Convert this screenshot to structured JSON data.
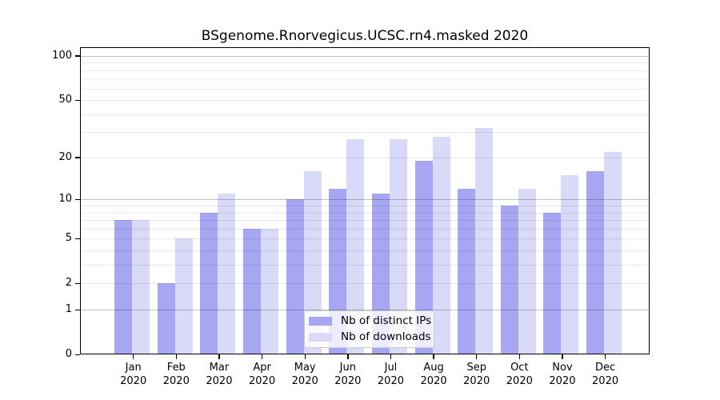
{
  "title": "BSgenome.Rnorvegicus.UCSC.rn4.masked 2020",
  "chart_data": {
    "type": "bar",
    "title": "BSgenome.Rnorvegicus.UCSC.rn4.masked 2020",
    "categories": [
      "Jan",
      "Feb",
      "Mar",
      "Apr",
      "May",
      "Jun",
      "Jul",
      "Aug",
      "Sep",
      "Oct",
      "Nov",
      "Dec"
    ],
    "category_year": "2020",
    "series": [
      {
        "name": "Nb of distinct IPs",
        "color": "#a6a6f2",
        "values": [
          7,
          2,
          8,
          6,
          10,
          12,
          11,
          19,
          12,
          9,
          8,
          16
        ]
      },
      {
        "name": "Nb of downloads",
        "color": "#d9d9f8",
        "values": [
          7,
          5,
          11,
          6,
          16,
          27,
          27,
          28,
          32,
          12,
          15,
          22
        ]
      }
    ],
    "y_axis": {
      "scale": "log1p",
      "tick_labels": [
        "0",
        "1",
        "2",
        "5",
        "10",
        "20",
        "50",
        "100"
      ],
      "tick_values": [
        0,
        1,
        2,
        5,
        10,
        20,
        50,
        100
      ],
      "major_gridline_values": [
        1,
        10,
        100
      ],
      "minor_gridline_values": [
        2,
        3,
        4,
        5,
        6,
        7,
        8,
        9,
        20,
        30,
        40,
        50,
        60,
        70,
        80,
        90
      ],
      "ylim": [
        0,
        115
      ],
      "grid": "on"
    },
    "x_axis": {
      "label_line2": "2020"
    },
    "legend": {
      "position": "bottom-center",
      "entries": [
        "Nb of distinct IPs",
        "Nb of downloads"
      ]
    }
  }
}
